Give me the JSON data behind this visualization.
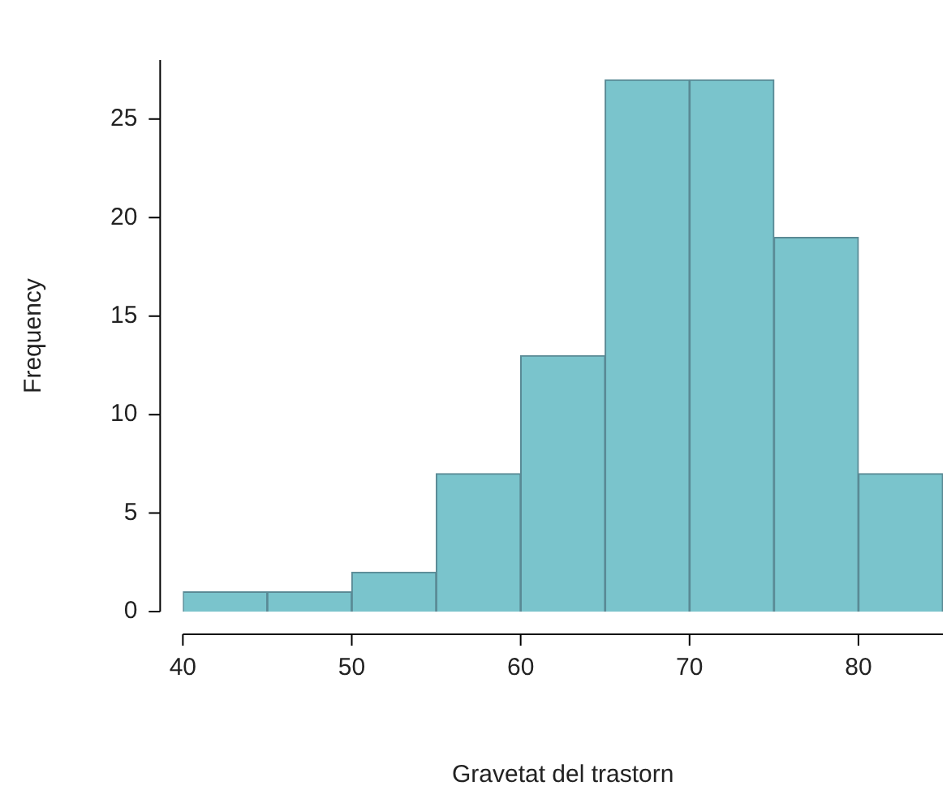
{
  "chart_data": {
    "type": "histogram",
    "xlabel": "Gravetat del trastorn",
    "ylabel": "Frequency",
    "bins": [
      40,
      45,
      50,
      55,
      60,
      65,
      70,
      75,
      80,
      85
    ],
    "values": [
      1,
      1,
      2,
      7,
      13,
      27,
      27,
      19,
      7
    ],
    "color": "#7ac4cc",
    "xlim": [
      40,
      85
    ],
    "xticks": [
      40,
      50,
      60,
      70,
      80
    ],
    "ylim": [
      0,
      28
    ],
    "yticks": [
      0,
      5,
      10,
      15,
      20,
      25
    ],
    "grid": false,
    "legend": false
  }
}
